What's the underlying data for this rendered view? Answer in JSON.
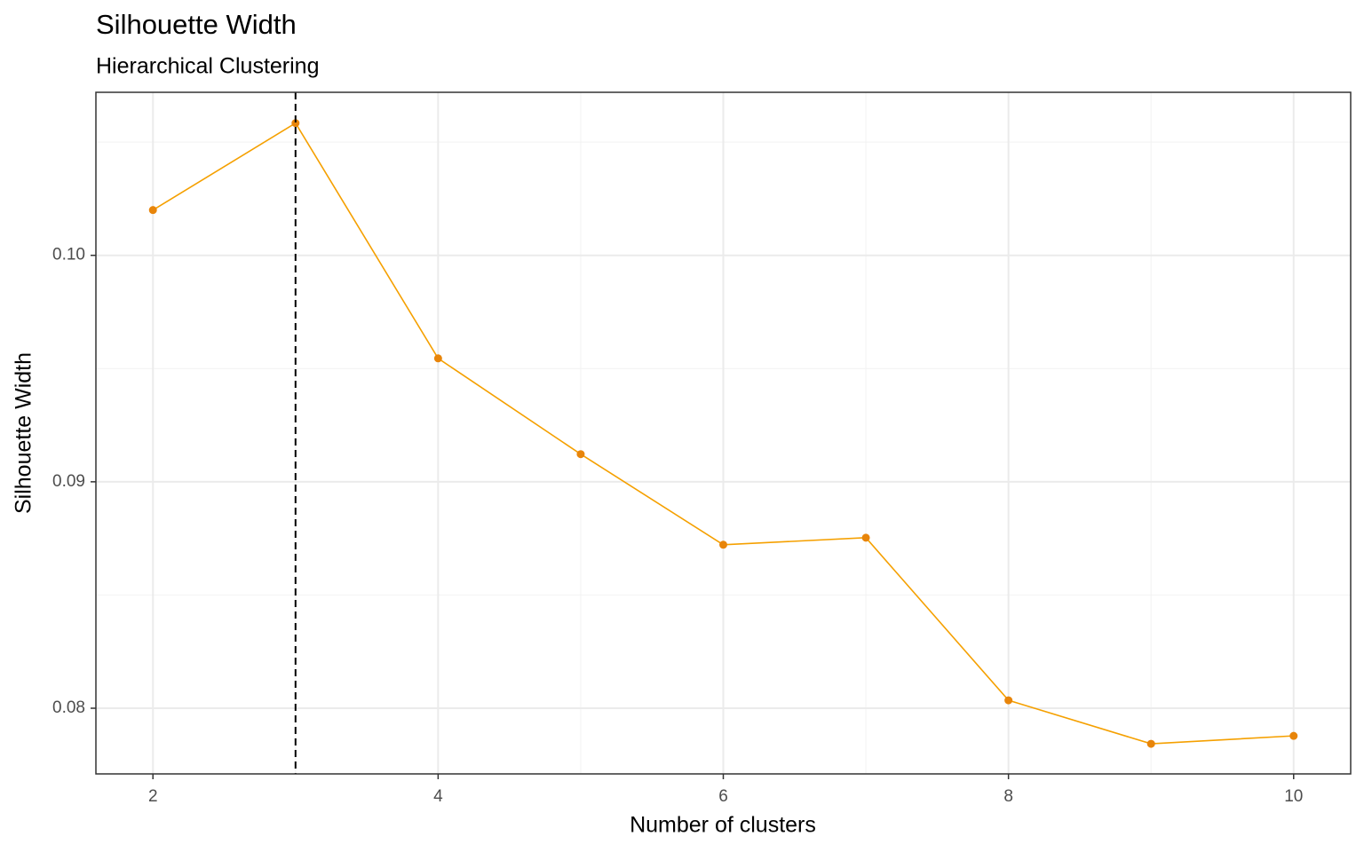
{
  "chart_data": {
    "type": "line",
    "title": "Silhouette Width",
    "subtitle": "Hierarchical Clustering",
    "x_label": "Number of clusters",
    "y_label": "Silhouette Width",
    "x": [
      2,
      3,
      4,
      5,
      6,
      7,
      8,
      9,
      10
    ],
    "series": [
      {
        "name": "Silhouette Width",
        "color": "#f5a000",
        "point_color": "#e8850a",
        "values": [
          0.102,
          0.10584,
          0.09545,
          0.09122,
          0.08722,
          0.08753,
          0.08035,
          0.07843,
          0.07878
        ]
      }
    ],
    "xlim": [
      1.6,
      10.4
    ],
    "ylim": [
      0.0771,
      0.1072
    ],
    "xticks": [
      2,
      4,
      6,
      8,
      10
    ],
    "yticks": [
      0.08,
      0.09,
      {
        "value": 0.1,
        "label": "0.10"
      }
    ],
    "minor_xticks": [
      3,
      5,
      7,
      9
    ],
    "minor_yticks": [
      0.085,
      0.095,
      0.105
    ],
    "vline": 3,
    "grid": true
  }
}
